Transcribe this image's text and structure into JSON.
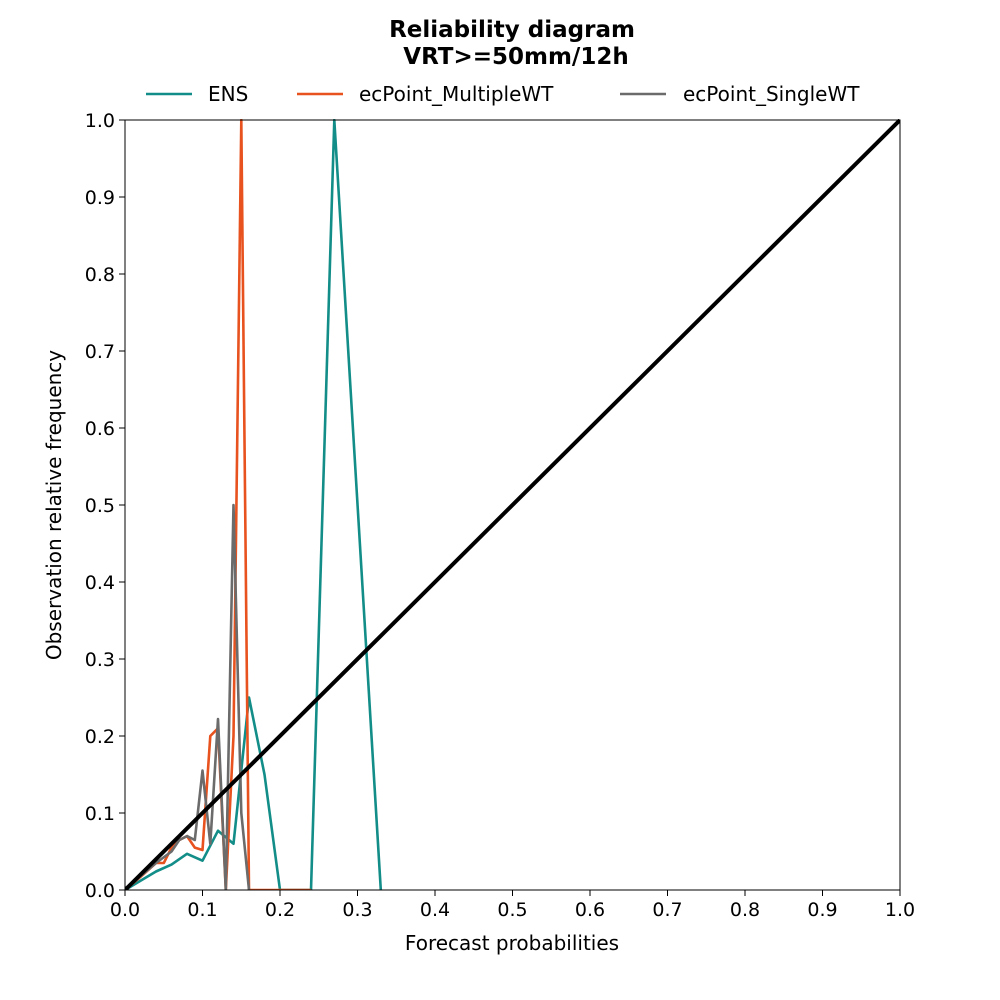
{
  "chart_data": {
    "type": "line",
    "title": "Reliability diagram",
    "subtitle": "VRT>=50mm/12h",
    "xlabel": "Forecast probabilities",
    "ylabel": "Observation relative frequency",
    "xlim": [
      0,
      1
    ],
    "ylim": [
      0,
      1
    ],
    "xticks": [
      "0.0",
      "0.1",
      "0.2",
      "0.3",
      "0.4",
      "0.5",
      "0.6",
      "0.7",
      "0.8",
      "0.9",
      "1.0"
    ],
    "yticks": [
      "0.0",
      "0.1",
      "0.2",
      "0.3",
      "0.4",
      "0.5",
      "0.6",
      "0.7",
      "0.8",
      "0.9",
      "1.0"
    ],
    "grid": false,
    "legend_position": "top",
    "diagonal": {
      "x": [
        0,
        1
      ],
      "y": [
        0,
        1
      ],
      "color": "#000000"
    },
    "series": [
      {
        "name": "ENS",
        "color": "#138d88",
        "x": [
          0.0,
          0.02,
          0.04,
          0.06,
          0.08,
          0.1,
          0.12,
          0.14,
          0.16,
          0.18,
          0.2,
          0.22,
          0.24,
          0.27,
          0.33
        ],
        "y": [
          0.0,
          0.012,
          0.024,
          0.033,
          0.047,
          0.038,
          0.077,
          0.06,
          0.25,
          0.15,
          0.0,
          0.0,
          0.0,
          1.0,
          0.0
        ]
      },
      {
        "name": "ecPoint_MultipleWT",
        "color": "#e8521e",
        "x": [
          0.0,
          0.02,
          0.04,
          0.05,
          0.06,
          0.07,
          0.08,
          0.09,
          0.1,
          0.11,
          0.12,
          0.13,
          0.14,
          0.15,
          0.16,
          0.18,
          0.2,
          0.22,
          0.24
        ],
        "y": [
          0.0,
          0.017,
          0.035,
          0.035,
          0.055,
          0.065,
          0.07,
          0.055,
          0.052,
          0.2,
          0.21,
          0.0,
          0.2,
          1.0,
          0.0,
          0.0,
          0.0,
          0.0,
          0.0
        ]
      },
      {
        "name": "ecPoint_SingleWT",
        "color": "#6b6b6b",
        "x": [
          0.0,
          0.02,
          0.04,
          0.06,
          0.07,
          0.08,
          0.09,
          0.1,
          0.11,
          0.12,
          0.13,
          0.14,
          0.15,
          0.16
        ],
        "y": [
          0.0,
          0.018,
          0.035,
          0.05,
          0.065,
          0.07,
          0.065,
          0.155,
          0.06,
          0.222,
          0.0,
          0.5,
          0.1,
          0.0
        ]
      }
    ]
  }
}
